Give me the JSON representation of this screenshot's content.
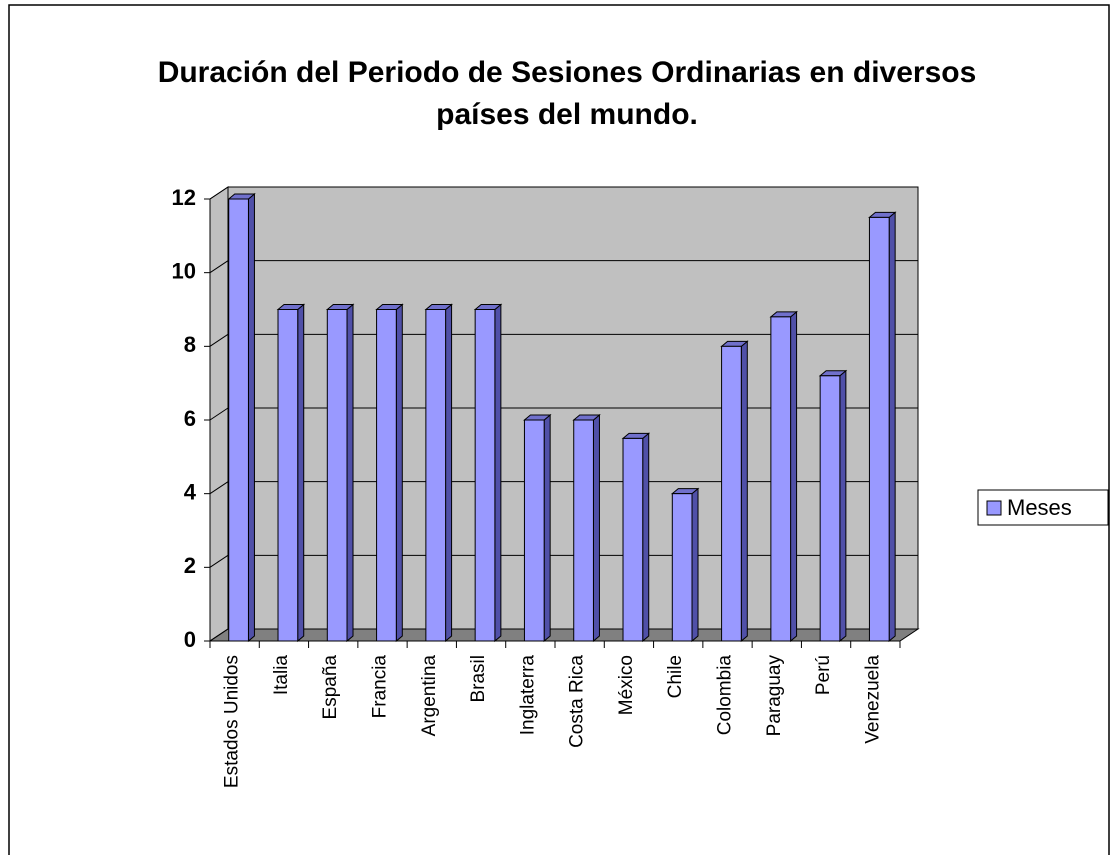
{
  "chart_data": {
    "type": "bar3d",
    "title": "Duración del Periodo de Sesiones Ordinarias en diversos países del mundo.",
    "categories": [
      "Estados Unidos",
      "Italia",
      "España",
      "Francia",
      "Argentina",
      "Brasil",
      "Inglaterra",
      "Costa Rica",
      "México",
      "Chile",
      "Colombia",
      "Paraguay",
      "Perú",
      "Venezuela"
    ],
    "series": [
      {
        "name": "Meses",
        "color": "#9999ff",
        "values": [
          12,
          9,
          9,
          9,
          9,
          9,
          6,
          6,
          5.5,
          4,
          8,
          8.8,
          7.2,
          11.5
        ]
      }
    ],
    "ylim": [
      0,
      12
    ],
    "yticks": [
      0,
      2,
      4,
      6,
      8,
      10,
      12
    ],
    "grid": true,
    "legend": "right"
  }
}
